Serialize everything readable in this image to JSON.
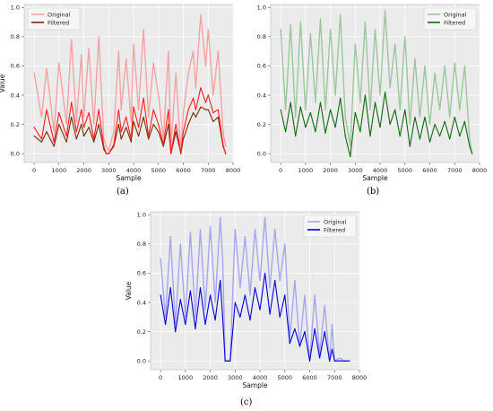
{
  "chart_data": [
    {
      "type": "line",
      "panel_label": "(a)",
      "xlabel": "Sample",
      "ylabel": "Value",
      "xlim": [
        -400,
        8000
      ],
      "ylim": [
        -0.06,
        1.02
      ],
      "xticks": [
        0,
        1000,
        2000,
        3000,
        4000,
        5000,
        6000,
        7000,
        8000
      ],
      "yticks": [
        0.0,
        0.2,
        0.4,
        0.6,
        0.8,
        1.0
      ],
      "grid": true,
      "legend": "top-left",
      "series": [
        {
          "name": "Original",
          "color": "#f4a3a3",
          "x": [
            0,
            300,
            500,
            800,
            1000,
            1300,
            1500,
            1700,
            1900,
            2000,
            2200,
            2400,
            2600,
            2800,
            2900,
            3000,
            3200,
            3400,
            3500,
            3700,
            3900,
            4000,
            4200,
            4400,
            4600,
            4800,
            5000,
            5200,
            5400,
            5500,
            5700,
            5900,
            6000,
            6200,
            6400,
            6500,
            6700,
            6900,
            7000,
            7200,
            7400,
            7600,
            7700
          ],
          "y": [
            0.55,
            0.25,
            0.58,
            0.15,
            0.62,
            0.2,
            0.78,
            0.22,
            0.68,
            0.25,
            0.72,
            0.2,
            0.8,
            0.1,
            0.05,
            0.02,
            0.15,
            0.7,
            0.3,
            0.65,
            0.22,
            0.75,
            0.3,
            0.85,
            0.25,
            0.62,
            0.4,
            0.1,
            0.7,
            0.05,
            0.55,
            0.02,
            0.28,
            0.55,
            0.7,
            0.45,
            0.95,
            0.6,
            0.85,
            0.4,
            0.7,
            0.15,
            0.05
          ]
        },
        {
          "name": "Filtered",
          "color": "#7a2a00",
          "x": [
            0,
            300,
            500,
            800,
            1000,
            1300,
            1500,
            1700,
            1900,
            2000,
            2200,
            2400,
            2600,
            2800,
            2900,
            3000,
            3200,
            3400,
            3500,
            3700,
            3900,
            4000,
            4200,
            4400,
            4600,
            4800,
            5000,
            5200,
            5400,
            5500,
            5700,
            5900,
            6000,
            6200,
            6400,
            6500,
            6700,
            6900,
            7000,
            7200,
            7400,
            7600,
            7700
          ],
          "y": [
            0.12,
            0.08,
            0.15,
            0.05,
            0.2,
            0.08,
            0.25,
            0.1,
            0.2,
            0.12,
            0.18,
            0.08,
            0.2,
            0.03,
            0.0,
            0.0,
            0.05,
            0.2,
            0.1,
            0.18,
            0.08,
            0.22,
            0.12,
            0.25,
            0.1,
            0.2,
            0.15,
            0.05,
            0.2,
            0.0,
            0.15,
            0.0,
            0.1,
            0.2,
            0.28,
            0.25,
            0.32,
            0.3,
            0.3,
            0.22,
            0.25,
            0.05,
            0.0
          ]
        },
        {
          "name": "",
          "color": "#ff1a1a",
          "x": [
            0,
            300,
            500,
            800,
            1000,
            1300,
            1500,
            1700,
            1900,
            2000,
            2200,
            2400,
            2600,
            2800,
            2900,
            3000,
            3200,
            3400,
            3500,
            3700,
            3900,
            4000,
            4200,
            4400,
            4600,
            4800,
            5000,
            5200,
            5400,
            5500,
            5700,
            5900,
            6000,
            6200,
            6400,
            6500,
            6700,
            6900,
            7000,
            7200,
            7400,
            7600,
            7700
          ],
          "y": [
            0.18,
            0.1,
            0.3,
            0.08,
            0.28,
            0.12,
            0.35,
            0.15,
            0.3,
            0.18,
            0.28,
            0.1,
            0.3,
            0.05,
            0.0,
            0.0,
            0.06,
            0.3,
            0.15,
            0.25,
            0.1,
            0.32,
            0.18,
            0.38,
            0.12,
            0.3,
            0.2,
            0.06,
            0.3,
            0.0,
            0.2,
            0.0,
            0.15,
            0.3,
            0.38,
            0.3,
            0.45,
            0.35,
            0.4,
            0.28,
            0.3,
            0.06,
            0.0
          ]
        }
      ]
    },
    {
      "type": "line",
      "panel_label": "(b)",
      "xlabel": "Sample",
      "ylabel": "",
      "xlim": [
        -400,
        8000
      ],
      "ylim": [
        -0.06,
        1.02
      ],
      "xticks": [
        0,
        1000,
        2000,
        3000,
        4000,
        5000,
        6000,
        7000,
        8000
      ],
      "yticks": [
        0.0,
        0.2,
        0.4,
        0.6,
        0.8,
        1.0
      ],
      "grid": true,
      "legend": "top-right",
      "series": [
        {
          "name": "Original",
          "color": "#9bc79b",
          "x": [
            0,
            200,
            400,
            600,
            800,
            1000,
            1200,
            1400,
            1600,
            1800,
            2000,
            2200,
            2400,
            2600,
            2800,
            3000,
            3200,
            3400,
            3600,
            3800,
            4000,
            4200,
            4400,
            4600,
            4800,
            5000,
            5200,
            5400,
            5600,
            5800,
            6000,
            6200,
            6400,
            6600,
            6800,
            7000,
            7200,
            7400,
            7600,
            7700
          ],
          "y": [
            0.85,
            0.3,
            0.88,
            0.25,
            0.9,
            0.3,
            0.82,
            0.35,
            0.92,
            0.3,
            0.85,
            0.4,
            0.95,
            0.25,
            0.05,
            0.75,
            0.35,
            0.9,
            0.3,
            0.85,
            0.4,
            0.98,
            0.45,
            0.75,
            0.3,
            0.8,
            0.2,
            0.65,
            0.25,
            0.6,
            0.2,
            0.55,
            0.3,
            0.6,
            0.25,
            0.62,
            0.3,
            0.6,
            0.1,
            0.0
          ]
        },
        {
          "name": "Filtered",
          "color": "#0f6a0f",
          "x": [
            0,
            200,
            400,
            600,
            800,
            1000,
            1200,
            1400,
            1600,
            1800,
            2000,
            2200,
            2400,
            2600,
            2800,
            3000,
            3200,
            3400,
            3600,
            3800,
            4000,
            4200,
            4400,
            4600,
            4800,
            5000,
            5200,
            5400,
            5600,
            5800,
            6000,
            6200,
            6400,
            6600,
            6800,
            7000,
            7200,
            7400,
            7600,
            7700
          ],
          "y": [
            0.3,
            0.15,
            0.35,
            0.12,
            0.32,
            0.18,
            0.28,
            0.15,
            0.35,
            0.14,
            0.3,
            0.18,
            0.38,
            0.12,
            -0.02,
            0.28,
            0.15,
            0.4,
            0.12,
            0.35,
            0.18,
            0.42,
            0.2,
            0.3,
            0.12,
            0.3,
            0.05,
            0.25,
            0.1,
            0.25,
            0.08,
            0.2,
            0.12,
            0.22,
            0.1,
            0.25,
            0.12,
            0.22,
            0.05,
            0.0
          ]
        }
      ]
    },
    {
      "type": "line",
      "panel_label": "(c)",
      "xlabel": "Sample",
      "ylabel": "Value",
      "xlim": [
        -400,
        8000
      ],
      "ylim": [
        -0.06,
        1.02
      ],
      "xticks": [
        0,
        1000,
        2000,
        3000,
        4000,
        5000,
        6000,
        7000,
        8000
      ],
      "yticks": [
        0.0,
        0.2,
        0.4,
        0.6,
        0.8,
        1.0
      ],
      "grid": true,
      "legend": "top-right",
      "series": [
        {
          "name": "Original",
          "color": "#a6a6f0",
          "x": [
            0,
            200,
            400,
            600,
            800,
            1000,
            1200,
            1400,
            1600,
            1800,
            2000,
            2200,
            2400,
            2500,
            2600,
            2700,
            2800,
            3000,
            3200,
            3400,
            3600,
            3800,
            4000,
            4200,
            4400,
            4600,
            4800,
            5000,
            5200,
            5400,
            5600,
            5800,
            6000,
            6200,
            6400,
            6600,
            6800,
            6900,
            7000,
            7200,
            7400,
            7600
          ],
          "y": [
            0.7,
            0.3,
            0.85,
            0.25,
            0.8,
            0.3,
            0.88,
            0.3,
            0.9,
            0.35,
            0.92,
            0.4,
            0.98,
            0.7,
            0.0,
            0.0,
            0.0,
            0.9,
            0.5,
            0.85,
            0.45,
            0.9,
            0.55,
            0.98,
            0.5,
            0.9,
            0.55,
            0.8,
            0.15,
            0.55,
            0.1,
            0.45,
            0.0,
            0.45,
            0.05,
            0.38,
            0.0,
            0.25,
            0.0,
            0.02,
            0.0,
            0.0
          ]
        },
        {
          "name": "Filtered",
          "color": "#0000e0",
          "x": [
            0,
            200,
            400,
            600,
            800,
            1000,
            1200,
            1400,
            1600,
            1800,
            2000,
            2200,
            2400,
            2500,
            2600,
            2700,
            2800,
            3000,
            3200,
            3400,
            3600,
            3800,
            4000,
            4200,
            4400,
            4600,
            4800,
            5000,
            5200,
            5400,
            5600,
            5800,
            6000,
            6200,
            6400,
            6600,
            6800,
            6900,
            7000,
            7200,
            7400,
            7600
          ],
          "y": [
            0.45,
            0.25,
            0.5,
            0.2,
            0.42,
            0.25,
            0.48,
            0.22,
            0.5,
            0.25,
            0.45,
            0.28,
            0.55,
            0.3,
            0.0,
            0.0,
            0.0,
            0.4,
            0.3,
            0.45,
            0.28,
            0.5,
            0.35,
            0.6,
            0.32,
            0.55,
            0.3,
            0.45,
            0.12,
            0.22,
            0.1,
            0.2,
            0.0,
            0.22,
            0.02,
            0.2,
            0.0,
            0.08,
            0.0,
            0.0,
            0.0,
            0.0
          ]
        }
      ]
    }
  ]
}
